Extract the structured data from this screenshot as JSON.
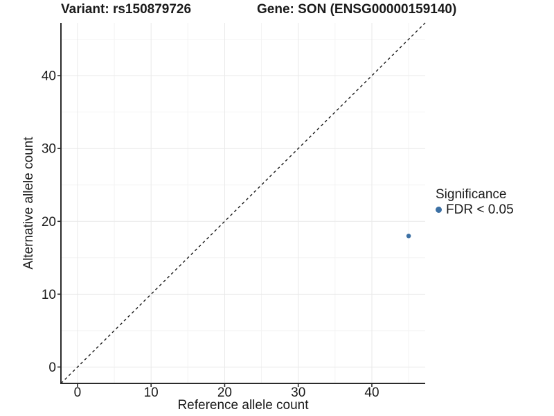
{
  "chart_data": {
    "type": "scatter",
    "title_left": "Variant: rs150879726",
    "title_right": "Gene: SON (ENSG00000159140)",
    "xlabel": "Reference allele count",
    "ylabel": "Alternative allele count",
    "xlim": [
      -2.25,
      47.25
    ],
    "ylim": [
      -2.25,
      47.25
    ],
    "xticks": [
      0,
      10,
      20,
      30,
      40
    ],
    "yticks": [
      0,
      10,
      20,
      30,
      40
    ],
    "xminor": [
      5,
      15,
      25,
      35,
      45
    ],
    "yminor": [
      5,
      15,
      25,
      35,
      45
    ],
    "grid": "major+minor",
    "points": [
      {
        "x": 45,
        "y": 18,
        "series": "FDR < 0.05"
      }
    ],
    "identity_line": {
      "slope": 1,
      "intercept": 0,
      "style": "dashed"
    },
    "legend": {
      "title": "Significance",
      "position": "right",
      "entries": [
        {
          "label": "FDR < 0.05",
          "color": "#3C70A4",
          "marker": "circle"
        }
      ]
    },
    "colors": {
      "point": "#3C70A4",
      "grid_major": "#e9e9e9",
      "grid_minor": "#f3f3f3",
      "axis": "#2b2b2b",
      "text": "#1a1a1a",
      "identity_line": "#1a1a1a",
      "background": "#ffffff"
    }
  }
}
